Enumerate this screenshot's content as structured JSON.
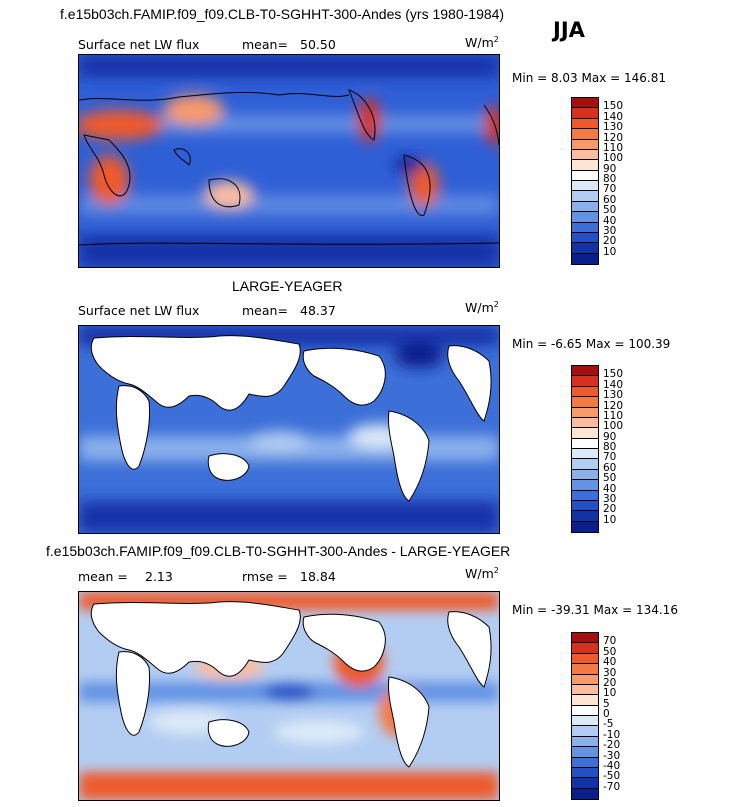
{
  "header": {
    "case_title": "f.e15b03ch.FAMIP.f09_f09.CLB-T0-SGHHT-300-Andes (yrs 1980-1984)",
    "season": "JJA"
  },
  "panels": [
    {
      "id": "test",
      "title": "",
      "left_label": "Surface net LW flux",
      "stat_label": "mean=",
      "stat_value": "50.50",
      "stat2_label": "",
      "stat2_value": "",
      "units": "W/m",
      "units_sup": "2",
      "minmax": "Min =   8.03 Max = 146.81",
      "levels": [
        "150",
        "140",
        "130",
        "120",
        "110",
        "100",
        "90",
        "80",
        "70",
        "60",
        "50",
        "40",
        "30",
        "20",
        "10"
      ],
      "colors": [
        "#a50f0f",
        "#d7301f",
        "#ef5a2c",
        "#f47a45",
        "#f99a6b",
        "#fcbda0",
        "#fde5d6",
        "#ffffff",
        "#dceaf8",
        "#b3cdf2",
        "#8bb1ec",
        "#6493e4",
        "#3c6fd8",
        "#2350c4",
        "#1233a8",
        "#0b1f8a"
      ]
    },
    {
      "id": "control",
      "title": "LARGE-YEAGER",
      "left_label": "Surface net LW flux",
      "stat_label": "mean=",
      "stat_value": "48.37",
      "stat2_label": "",
      "stat2_value": "",
      "units": "W/m",
      "units_sup": "2",
      "minmax": "Min =  -6.65 Max = 100.39",
      "levels": [
        "150",
        "140",
        "130",
        "120",
        "110",
        "100",
        "90",
        "80",
        "70",
        "60",
        "50",
        "40",
        "30",
        "20",
        "10"
      ],
      "colors": [
        "#a50f0f",
        "#d7301f",
        "#ef5a2c",
        "#f47a45",
        "#f99a6b",
        "#fcbda0",
        "#fde5d6",
        "#ffffff",
        "#dceaf8",
        "#b3cdf2",
        "#8bb1ec",
        "#6493e4",
        "#3c6fd8",
        "#2350c4",
        "#1233a8",
        "#0b1f8a"
      ]
    },
    {
      "id": "diff",
      "title": "f.e15b03ch.FAMIP.f09_f09.CLB-T0-SGHHT-300-Andes - LARGE-YEAGER",
      "left_label": "",
      "stat_label": "mean =",
      "stat_value": "2.13",
      "stat2_label": "rmse =",
      "stat2_value": "18.84",
      "units": "W/m",
      "units_sup": "2",
      "minmax": "Min = -39.31 Max = 134.16",
      "levels": [
        "70",
        "50",
        "40",
        "30",
        "20",
        "10",
        "5",
        "0",
        "-5",
        "-10",
        "-20",
        "-30",
        "-40",
        "-50",
        "-70"
      ],
      "colors": [
        "#a50f0f",
        "#d7301f",
        "#ef5a2c",
        "#f47a45",
        "#f99a6b",
        "#fcbda0",
        "#fde5d6",
        "#ffffff",
        "#dceaf8",
        "#b3cdf2",
        "#8bb1ec",
        "#6493e4",
        "#3c6fd8",
        "#2350c4",
        "#1233a8",
        "#0b1f8a"
      ]
    }
  ]
}
